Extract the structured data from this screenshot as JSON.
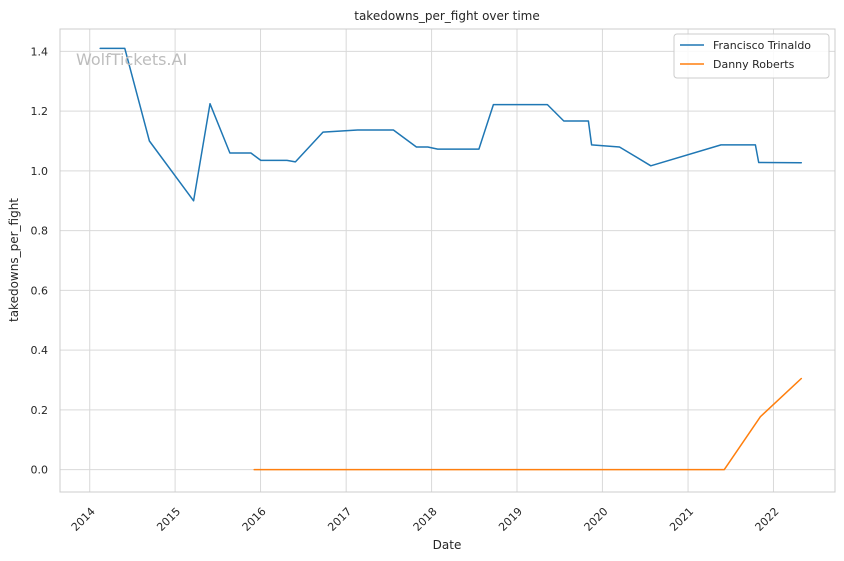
{
  "chart_data": {
    "type": "line",
    "title": "takedowns_per_fight over time",
    "xlabel": "Date",
    "ylabel": "takedowns_per_fight",
    "watermark": "WolfTickets.AI",
    "x_ticks": [
      "2014",
      "2015",
      "2016",
      "2017",
      "2018",
      "2019",
      "2020",
      "2021",
      "2022"
    ],
    "y_ticks": [
      "0.0",
      "0.2",
      "0.4",
      "0.6",
      "0.8",
      "1.0",
      "1.2",
      "1.4"
    ],
    "xlim": [
      "2013-08-27",
      "2022-09-21"
    ],
    "ylim": [
      -0.075,
      1.475
    ],
    "grid": true,
    "legend_position": "top-right",
    "colors": {
      "series_1": "#1f77b4",
      "series_2": "#ff7f0e",
      "grid": "#d9d9d9",
      "frame": "#cccccc"
    },
    "series": [
      {
        "name": "Francisco Trinaldo",
        "color": "#1f77b4",
        "points": [
          [
            "2014-02-15",
            1.41
          ],
          [
            "2014-05-31",
            1.41
          ],
          [
            "2014-09-13",
            1.1
          ],
          [
            "2015-03-21",
            0.9
          ],
          [
            "2015-05-30",
            1.225
          ],
          [
            "2015-08-23",
            1.06
          ],
          [
            "2015-11-21",
            1.06
          ],
          [
            "2016-01-02",
            1.035
          ],
          [
            "2016-04-23",
            1.035
          ],
          [
            "2016-05-29",
            1.03
          ],
          [
            "2016-09-24",
            1.13
          ],
          [
            "2017-02-19",
            1.137
          ],
          [
            "2017-07-22",
            1.137
          ],
          [
            "2017-10-28",
            1.08
          ],
          [
            "2017-12-16",
            1.08
          ],
          [
            "2018-01-27",
            1.073
          ],
          [
            "2018-07-22",
            1.073
          ],
          [
            "2018-09-22",
            1.222
          ],
          [
            "2019-05-11",
            1.222
          ],
          [
            "2019-07-20",
            1.167
          ],
          [
            "2019-11-02",
            1.167
          ],
          [
            "2019-11-16",
            1.087
          ],
          [
            "2020-03-14",
            1.08
          ],
          [
            "2020-07-26",
            1.017
          ],
          [
            "2021-05-22",
            1.087
          ],
          [
            "2021-10-16",
            1.087
          ],
          [
            "2021-10-30",
            1.028
          ],
          [
            "2022-04-30",
            1.027
          ]
        ]
      },
      {
        "name": "Danny Roberts",
        "color": "#ff7f0e",
        "points": [
          [
            "2015-12-05",
            0.0
          ],
          [
            "2021-06-05",
            0.0
          ],
          [
            "2021-11-06",
            0.177
          ],
          [
            "2022-04-30",
            0.305
          ]
        ]
      }
    ]
  }
}
